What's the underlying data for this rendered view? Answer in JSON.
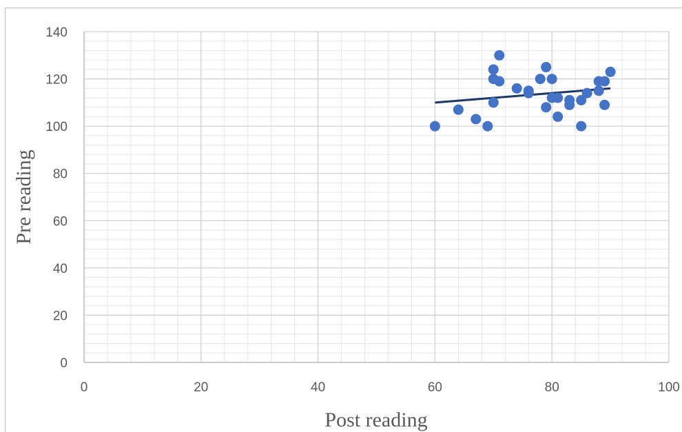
{
  "chart_data": {
    "type": "scatter",
    "xlabel": "Post reading",
    "ylabel": "Pre reading",
    "xlim": [
      0,
      100
    ],
    "ylim": [
      0,
      140
    ],
    "xticks": [
      0,
      20,
      40,
      60,
      80,
      100
    ],
    "yticks": [
      0,
      20,
      40,
      60,
      80,
      100,
      120,
      140
    ],
    "grid": true,
    "marker_color": "#4472c4",
    "trendline_color": "#203864",
    "points": [
      {
        "x": 60,
        "y": 100
      },
      {
        "x": 64,
        "y": 107
      },
      {
        "x": 67,
        "y": 103
      },
      {
        "x": 69,
        "y": 100
      },
      {
        "x": 70,
        "y": 124
      },
      {
        "x": 70,
        "y": 120
      },
      {
        "x": 70,
        "y": 110
      },
      {
        "x": 71,
        "y": 130
      },
      {
        "x": 71,
        "y": 119
      },
      {
        "x": 74,
        "y": 116
      },
      {
        "x": 76,
        "y": 115
      },
      {
        "x": 76,
        "y": 114
      },
      {
        "x": 78,
        "y": 120
      },
      {
        "x": 79,
        "y": 125
      },
      {
        "x": 79,
        "y": 108
      },
      {
        "x": 80,
        "y": 120
      },
      {
        "x": 80,
        "y": 112
      },
      {
        "x": 81,
        "y": 112
      },
      {
        "x": 81,
        "y": 104
      },
      {
        "x": 83,
        "y": 111
      },
      {
        "x": 83,
        "y": 109
      },
      {
        "x": 85,
        "y": 111
      },
      {
        "x": 85,
        "y": 100
      },
      {
        "x": 86,
        "y": 114
      },
      {
        "x": 88,
        "y": 119
      },
      {
        "x": 88,
        "y": 115
      },
      {
        "x": 89,
        "y": 119
      },
      {
        "x": 89,
        "y": 109
      },
      {
        "x": 90,
        "y": 123
      }
    ],
    "trendline": {
      "x": [
        60,
        90
      ],
      "y": [
        110,
        116
      ]
    }
  }
}
